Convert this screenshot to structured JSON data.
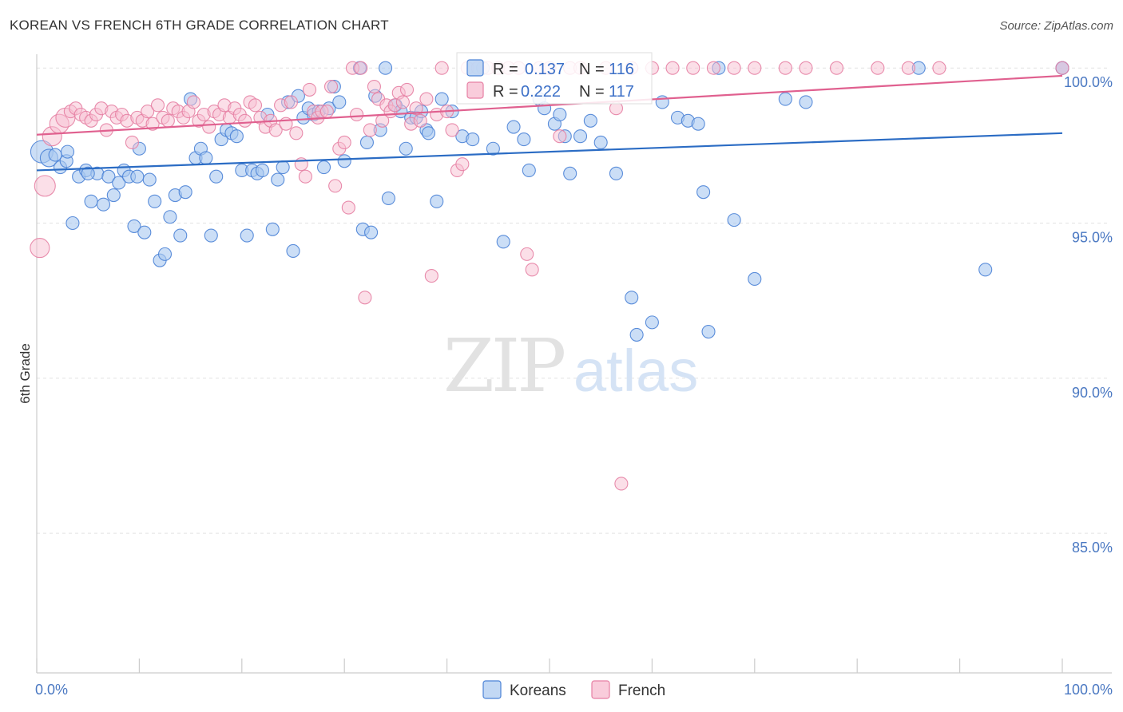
{
  "title": "KOREAN VS FRENCH 6TH GRADE CORRELATION CHART",
  "source": "Source: ZipAtlas.com",
  "watermark": {
    "zip": "ZIP",
    "atlas": "atlas"
  },
  "colors": {
    "koreans_fill": "#a8c8f0",
    "koreans_stroke": "#4a82d6",
    "koreans_line": "#2b6cc4",
    "french_fill": "#f7bfd2",
    "french_stroke": "#e67fa3",
    "french_line": "#e0608f",
    "axis_label": "#4a78c2",
    "grid": "#e2e2e2"
  },
  "legend": {
    "koreans": {
      "r_label": "R =",
      "r_value": "0.137",
      "n_label": "N =",
      "n_value": "116"
    },
    "french": {
      "r_label": "R =",
      "r_value": "0.222",
      "n_label": "N =",
      "n_value": "117"
    }
  },
  "chart_data": {
    "type": "scatter",
    "title": "KOREAN VS FRENCH 6TH GRADE CORRELATION CHART",
    "xlabel": "",
    "ylabel": "6th Grade",
    "xlim": [
      0,
      100
    ],
    "ylim": [
      80.5,
      100.7
    ],
    "x_tick_labels": [
      "0.0%",
      "100.0%"
    ],
    "y_ticks": [
      85,
      90,
      95,
      100
    ],
    "y_tick_labels": [
      "85.0%",
      "90.0%",
      "95.0%",
      "100.0%"
    ],
    "grid": true,
    "legend_position": "top-center",
    "series": [
      {
        "name": "Koreans",
        "r": 0.137,
        "n": 116,
        "trend": {
          "x": [
            0,
            100
          ],
          "y": [
            96.7,
            97.9
          ]
        },
        "points": [
          [
            0.5,
            97.3,
            14
          ],
          [
            1.2,
            97.1,
            11
          ],
          [
            1.8,
            97.2,
            8
          ],
          [
            2.3,
            96.8,
            8
          ],
          [
            2.9,
            97.0,
            8
          ],
          [
            3.5,
            95.0,
            8
          ],
          [
            4.1,
            96.5,
            8
          ],
          [
            4.8,
            96.7,
            8
          ],
          [
            5.3,
            95.7,
            8
          ],
          [
            5.9,
            96.6,
            8
          ],
          [
            6.5,
            95.6,
            8
          ],
          [
            7.0,
            96.5,
            8
          ],
          [
            7.5,
            95.9,
            8
          ],
          [
            8.0,
            96.3,
            8
          ],
          [
            8.5,
            96.7,
            8
          ],
          [
            9.0,
            96.5,
            8
          ],
          [
            9.5,
            94.9,
            8
          ],
          [
            10.0,
            97.4,
            8
          ],
          [
            10.5,
            94.7,
            8
          ],
          [
            11.0,
            96.4,
            8
          ],
          [
            11.5,
            95.7,
            8
          ],
          [
            12.0,
            93.8,
            8
          ],
          [
            12.5,
            94.0,
            8
          ],
          [
            13.0,
            95.2,
            8
          ],
          [
            13.5,
            95.9,
            8
          ],
          [
            14.0,
            94.6,
            8
          ],
          [
            14.5,
            96.0,
            8
          ],
          [
            15.0,
            99.0,
            8
          ],
          [
            15.5,
            97.1,
            8
          ],
          [
            16.0,
            97.4,
            8
          ],
          [
            16.5,
            97.1,
            8
          ],
          [
            17.0,
            94.6,
            8
          ],
          [
            17.5,
            96.5,
            8
          ],
          [
            18.0,
            97.7,
            8
          ],
          [
            18.5,
            98.0,
            8
          ],
          [
            19.0,
            97.9,
            8
          ],
          [
            19.5,
            97.8,
            8
          ],
          [
            20.0,
            96.7,
            8
          ],
          [
            20.5,
            94.6,
            8
          ],
          [
            21.0,
            96.7,
            8
          ],
          [
            21.5,
            96.6,
            8
          ],
          [
            22.0,
            96.7,
            8
          ],
          [
            22.5,
            98.5,
            8
          ],
          [
            23.0,
            94.8,
            8
          ],
          [
            23.5,
            96.4,
            8
          ],
          [
            24.0,
            96.8,
            8
          ],
          [
            24.5,
            98.9,
            8
          ],
          [
            25.0,
            94.1,
            8
          ],
          [
            25.5,
            99.1,
            8
          ],
          [
            26.0,
            98.4,
            8
          ],
          [
            26.5,
            98.7,
            8
          ],
          [
            27.0,
            98.5,
            8
          ],
          [
            27.5,
            98.6,
            8
          ],
          [
            28.0,
            96.8,
            8
          ],
          [
            28.5,
            98.7,
            8
          ],
          [
            29.0,
            99.4,
            8
          ],
          [
            29.5,
            98.9,
            8
          ],
          [
            30.0,
            97.0,
            8
          ],
          [
            31.5,
            100.0,
            8
          ],
          [
            31.8,
            94.8,
            8
          ],
          [
            32.2,
            97.6,
            8
          ],
          [
            32.6,
            94.7,
            8
          ],
          [
            33.0,
            99.1,
            8
          ],
          [
            33.5,
            98.0,
            8
          ],
          [
            34.0,
            100.0,
            8
          ],
          [
            34.3,
            95.8,
            8
          ],
          [
            35.0,
            98.8,
            8
          ],
          [
            35.5,
            98.6,
            8
          ],
          [
            36.0,
            97.4,
            8
          ],
          [
            36.5,
            98.4,
            8
          ],
          [
            37.0,
            98.4,
            8
          ],
          [
            38.0,
            98.0,
            8
          ],
          [
            38.2,
            97.9,
            8
          ],
          [
            39.0,
            95.7,
            8
          ],
          [
            39.5,
            99.0,
            8
          ],
          [
            40.5,
            98.6,
            8
          ],
          [
            41.5,
            97.8,
            8
          ],
          [
            42.5,
            97.7,
            8
          ],
          [
            43.5,
            100.0,
            8
          ],
          [
            44.5,
            97.4,
            8
          ],
          [
            45.5,
            94.4,
            8
          ],
          [
            46.5,
            98.1,
            8
          ],
          [
            47.5,
            97.7,
            8
          ],
          [
            48.0,
            96.7,
            8
          ],
          [
            49.0,
            99.0,
            8
          ],
          [
            49.5,
            98.7,
            8
          ],
          [
            50.5,
            98.2,
            8
          ],
          [
            51.0,
            98.5,
            8
          ],
          [
            51.5,
            97.8,
            8
          ],
          [
            52.0,
            96.6,
            8
          ],
          [
            53.0,
            97.8,
            8
          ],
          [
            54.0,
            98.3,
            8
          ],
          [
            55.0,
            97.6,
            8
          ],
          [
            56.5,
            96.6,
            8
          ],
          [
            58.0,
            92.6,
            8
          ],
          [
            58.5,
            91.4,
            8
          ],
          [
            60.0,
            91.8,
            8
          ],
          [
            61.0,
            98.9,
            8
          ],
          [
            62.5,
            98.4,
            8
          ],
          [
            63.5,
            98.3,
            8
          ],
          [
            64.5,
            98.2,
            8
          ],
          [
            65.0,
            96.0,
            8
          ],
          [
            65.5,
            91.5,
            8
          ],
          [
            66.5,
            100.0,
            8
          ],
          [
            68.0,
            95.1,
            8
          ],
          [
            70.0,
            93.2,
            8
          ],
          [
            73.0,
            99.0,
            8
          ],
          [
            75.0,
            98.9,
            8
          ],
          [
            86.0,
            100.0,
            8
          ],
          [
            92.5,
            93.5,
            8
          ],
          [
            100.0,
            100.0,
            8
          ],
          [
            100.0,
            100.0,
            8
          ],
          [
            3.0,
            97.3,
            8
          ],
          [
            5.0,
            96.6,
            8
          ],
          [
            9.8,
            96.5,
            8
          ],
          [
            37.5,
            98.6,
            8
          ]
        ]
      },
      {
        "name": "French",
        "r": 0.222,
        "n": 117,
        "trend": {
          "x": [
            0,
            100
          ],
          "y": [
            97.85,
            99.75
          ]
        },
        "points": [
          [
            0.3,
            94.2,
            12
          ],
          [
            0.8,
            96.2,
            13
          ],
          [
            1.5,
            97.8,
            12
          ],
          [
            2.2,
            98.2,
            12
          ],
          [
            2.8,
            98.4,
            12
          ],
          [
            3.3,
            98.6,
            8
          ],
          [
            3.8,
            98.7,
            8
          ],
          [
            4.3,
            98.5,
            8
          ],
          [
            4.8,
            98.4,
            8
          ],
          [
            5.3,
            98.3,
            8
          ],
          [
            5.8,
            98.5,
            8
          ],
          [
            6.3,
            98.7,
            8
          ],
          [
            6.8,
            98.0,
            8
          ],
          [
            7.3,
            98.6,
            8
          ],
          [
            7.8,
            98.4,
            8
          ],
          [
            8.3,
            98.5,
            8
          ],
          [
            8.8,
            98.3,
            8
          ],
          [
            9.3,
            97.6,
            8
          ],
          [
            9.8,
            98.4,
            8
          ],
          [
            10.3,
            98.3,
            8
          ],
          [
            10.8,
            98.6,
            8
          ],
          [
            11.3,
            98.2,
            8
          ],
          [
            11.8,
            98.8,
            8
          ],
          [
            12.3,
            98.4,
            8
          ],
          [
            12.8,
            98.3,
            8
          ],
          [
            13.3,
            98.7,
            8
          ],
          [
            13.8,
            98.6,
            8
          ],
          [
            14.3,
            98.4,
            8
          ],
          [
            14.8,
            98.6,
            8
          ],
          [
            15.3,
            98.9,
            8
          ],
          [
            15.8,
            98.3,
            8
          ],
          [
            16.3,
            98.5,
            8
          ],
          [
            16.8,
            98.1,
            8
          ],
          [
            17.3,
            98.6,
            8
          ],
          [
            17.8,
            98.5,
            8
          ],
          [
            18.3,
            98.8,
            8
          ],
          [
            18.8,
            98.4,
            8
          ],
          [
            19.3,
            98.7,
            8
          ],
          [
            19.8,
            98.5,
            8
          ],
          [
            20.3,
            98.3,
            8
          ],
          [
            20.8,
            98.9,
            8
          ],
          [
            21.3,
            98.8,
            8
          ],
          [
            21.8,
            98.4,
            8
          ],
          [
            22.3,
            98.1,
            8
          ],
          [
            22.8,
            98.3,
            8
          ],
          [
            23.3,
            98.0,
            8
          ],
          [
            23.8,
            98.8,
            8
          ],
          [
            24.3,
            98.2,
            8
          ],
          [
            24.8,
            98.9,
            8
          ],
          [
            25.3,
            97.9,
            8
          ],
          [
            25.8,
            96.9,
            8
          ],
          [
            26.2,
            96.5,
            8
          ],
          [
            26.6,
            99.3,
            8
          ],
          [
            27.0,
            98.6,
            8
          ],
          [
            27.4,
            98.4,
            8
          ],
          [
            27.8,
            98.6,
            8
          ],
          [
            28.3,
            98.6,
            8
          ],
          [
            28.7,
            99.4,
            8
          ],
          [
            29.1,
            96.2,
            8
          ],
          [
            29.5,
            97.4,
            8
          ],
          [
            30.0,
            97.6,
            8
          ],
          [
            30.4,
            95.5,
            8
          ],
          [
            30.8,
            100.0,
            8
          ],
          [
            31.2,
            98.5,
            8
          ],
          [
            31.6,
            100.0,
            8
          ],
          [
            32.0,
            92.6,
            8
          ],
          [
            32.5,
            98.0,
            8
          ],
          [
            32.9,
            99.4,
            8
          ],
          [
            33.3,
            99.0,
            8
          ],
          [
            33.7,
            98.3,
            8
          ],
          [
            34.1,
            98.8,
            8
          ],
          [
            34.5,
            98.6,
            8
          ],
          [
            34.9,
            98.8,
            8
          ],
          [
            35.3,
            99.2,
            8
          ],
          [
            35.7,
            98.9,
            8
          ],
          [
            36.1,
            99.3,
            8
          ],
          [
            36.5,
            98.2,
            8
          ],
          [
            37.0,
            98.7,
            8
          ],
          [
            37.4,
            98.3,
            8
          ],
          [
            38.0,
            99.0,
            8
          ],
          [
            38.5,
            93.3,
            8
          ],
          [
            39.0,
            98.5,
            8
          ],
          [
            39.5,
            100.0,
            8
          ],
          [
            40.0,
            98.6,
            8
          ],
          [
            40.5,
            98.0,
            8
          ],
          [
            41.0,
            96.7,
            8
          ],
          [
            41.5,
            96.9,
            8
          ],
          [
            42.0,
            100.0,
            8
          ],
          [
            43.0,
            100.0,
            8
          ],
          [
            44.0,
            100.0,
            8
          ],
          [
            45.0,
            100.0,
            8
          ],
          [
            46.0,
            100.0,
            8
          ],
          [
            47.0,
            100.0,
            8
          ],
          [
            47.8,
            94.0,
            8
          ],
          [
            48.3,
            93.5,
            8
          ],
          [
            49.0,
            100.0,
            8
          ],
          [
            50.0,
            100.0,
            8
          ],
          [
            51.0,
            97.8,
            8
          ],
          [
            52.0,
            100.0,
            8
          ],
          [
            53.0,
            100.0,
            8
          ],
          [
            55.5,
            100.0,
            8
          ],
          [
            56.5,
            98.7,
            8
          ],
          [
            57.0,
            86.6,
            8
          ],
          [
            58.0,
            100.0,
            8
          ],
          [
            60.0,
            100.0,
            8
          ],
          [
            62.0,
            100.0,
            8
          ],
          [
            64.0,
            100.0,
            8
          ],
          [
            66.0,
            100.0,
            8
          ],
          [
            68.0,
            100.0,
            8
          ],
          [
            70.0,
            100.0,
            8
          ],
          [
            73.0,
            100.0,
            8
          ],
          [
            75.0,
            100.0,
            8
          ],
          [
            78.0,
            100.0,
            8
          ],
          [
            82.0,
            100.0,
            8
          ],
          [
            85.0,
            100.0,
            8
          ],
          [
            88.0,
            100.0,
            8
          ],
          [
            100.0,
            100.0,
            8
          ]
        ]
      }
    ]
  }
}
